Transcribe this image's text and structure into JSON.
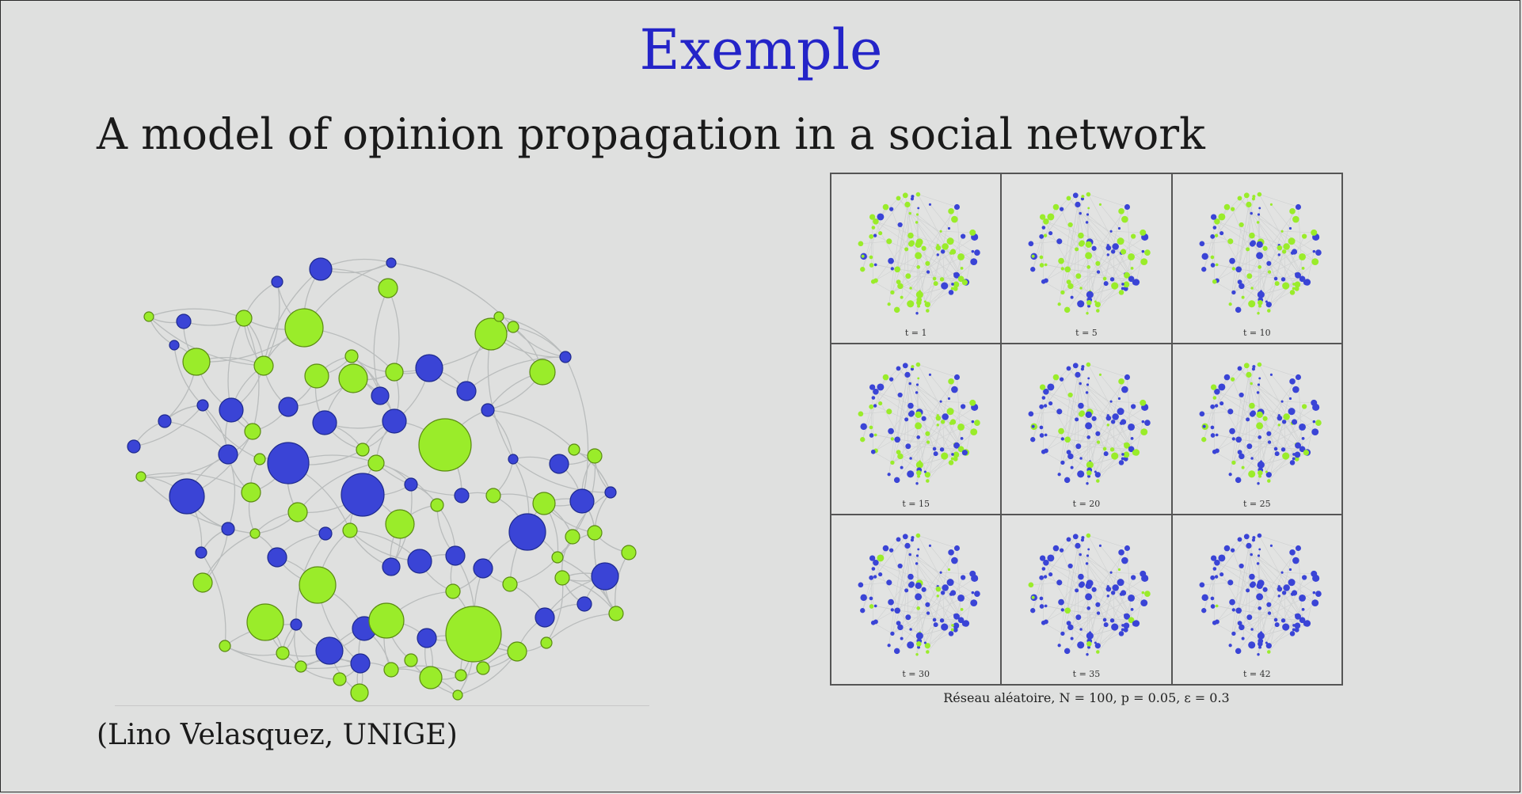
{
  "slide": {
    "title": "Exemple",
    "subtitle": "A model of opinion propagation in a social network",
    "credit": "(Lino Velasquez, UNIGE)"
  },
  "colors": {
    "title": "#2424c8",
    "opinion_a": "#3a44d6",
    "opinion_b": "#9aec2a",
    "edge": "#b9bcbc",
    "background": "#dfe0df"
  },
  "figure": {
    "caption": "Réseau aléatoire, N = 100, p = 0.05, ε = 0.3",
    "panels": [
      {
        "label": "t = 1",
        "blue_fraction": 0.35
      },
      {
        "label": "t = 5",
        "blue_fraction": 0.4
      },
      {
        "label": "t = 10",
        "blue_fraction": 0.48
      },
      {
        "label": "t = 15",
        "blue_fraction": 0.58
      },
      {
        "label": "t = 20",
        "blue_fraction": 0.68
      },
      {
        "label": "t = 25",
        "blue_fraction": 0.74
      },
      {
        "label": "t = 30",
        "blue_fraction": 0.84
      },
      {
        "label": "t = 35",
        "blue_fraction": 0.9
      },
      {
        "label": "t = 42",
        "blue_fraction": 0.98
      }
    ]
  }
}
